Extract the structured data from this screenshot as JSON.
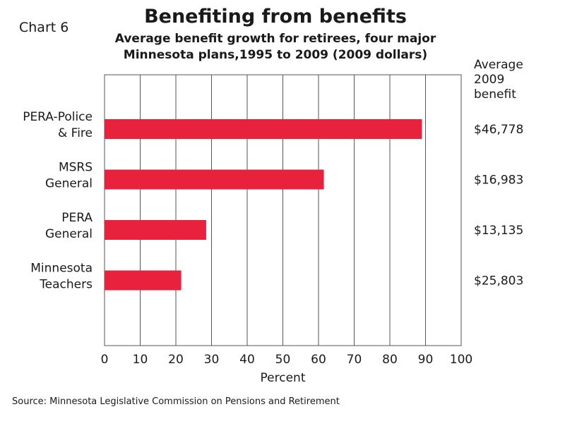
{
  "chart_label": "Chart 6",
  "chart_data": {
    "type": "bar",
    "orientation": "horizontal",
    "title": "Benefiting from benefits",
    "subtitle_lines": [
      "Average benefit growth for retirees, four major",
      "Minnesota plans,1995 to 2009 (2009 dollars)"
    ],
    "categories": [
      [
        "PERA-Police",
        "& Fire"
      ],
      [
        "MSRS",
        "General"
      ],
      [
        "PERA",
        "General"
      ],
      [
        "Minnesota",
        "Teachers"
      ]
    ],
    "values": [
      89,
      61.5,
      28.5,
      21.5
    ],
    "xlabel": "Percent",
    "xlim": [
      0,
      100
    ],
    "xticks": [
      "0",
      "10",
      "20",
      "30",
      "40",
      "50",
      "60",
      "70",
      "80",
      "90",
      "100"
    ],
    "grid": "vertical",
    "bar_color": "#e8213c",
    "right_column_header": [
      "Average",
      "2009",
      "benefit"
    ],
    "right_column_values": [
      "$46,778",
      "$16,983",
      "$13,135",
      "$25,803"
    ]
  },
  "source": "Source: Minnesota Legislative Commission on Pensions and Retirement"
}
